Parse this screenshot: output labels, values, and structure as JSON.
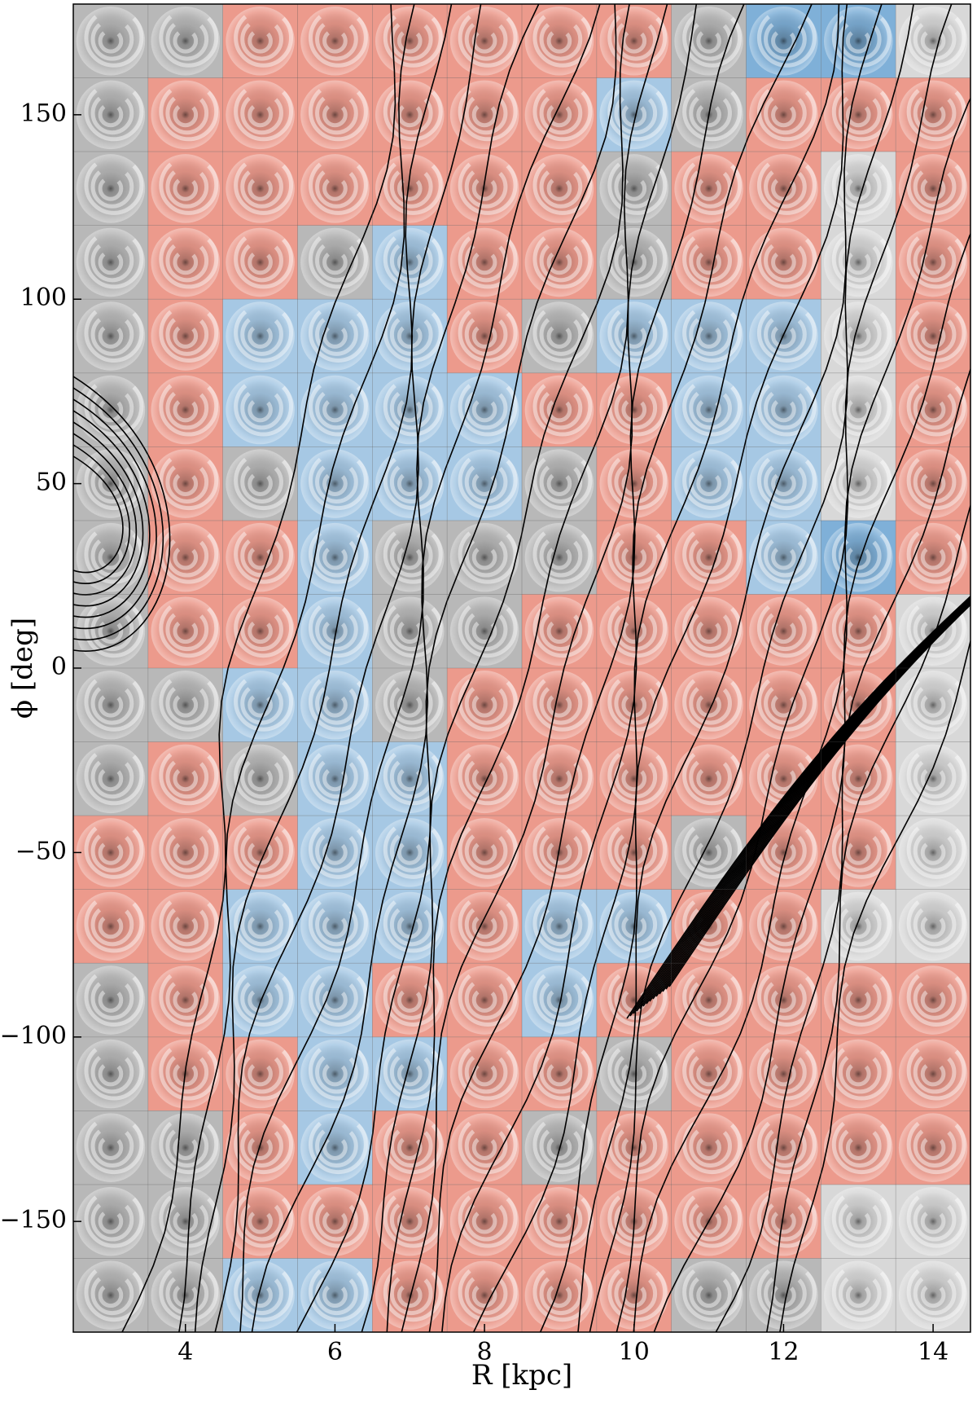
{
  "chart_data": {
    "type": "heatmap",
    "xlabel": "R [kpc]",
    "ylabel": "ϕ [deg]",
    "x": [
      3,
      4,
      5,
      6,
      7,
      8,
      9,
      10,
      11,
      12,
      13,
      14
    ],
    "y": [
      170,
      150,
      130,
      110,
      90,
      70,
      50,
      30,
      10,
      -10,
      -30,
      -50,
      -70,
      -90,
      -110,
      -130,
      -150,
      -170
    ],
    "xlim": [
      2.5,
      14.5
    ],
    "ylim": [
      -180,
      180
    ],
    "xticks": [
      4,
      6,
      8,
      10,
      12,
      14
    ],
    "yticks": [
      {
        "value": -150,
        "label": "−150"
      },
      {
        "value": -100,
        "label": "−100"
      },
      {
        "value": -50,
        "label": "−50"
      },
      0,
      50,
      100,
      150
    ],
    "grid": true,
    "cell_colors": [
      [
        "#b8b8b8",
        "#b8b8b8",
        "#ec9a8c",
        "#ec9a8c",
        "#ec9a8c",
        "#ec9a8c",
        "#ec9a8c",
        "#ec9a8c",
        "#b8b8b8",
        "#7fb0d8",
        "#7fb0d8",
        "#d8d8d8"
      ],
      [
        "#b8b8b8",
        "#ec9a8c",
        "#ec9a8c",
        "#ec9a8c",
        "#ec9a8c",
        "#ec9a8c",
        "#ec9a8c",
        "#a6c8e4",
        "#b8b8b8",
        "#ec9a8c",
        "#ec9a8c",
        "#ec9a8c"
      ],
      [
        "#b8b8b8",
        "#ec9a8c",
        "#ec9a8c",
        "#ec9a8c",
        "#ec9a8c",
        "#ec9a8c",
        "#ec9a8c",
        "#b8b8b8",
        "#ec9a8c",
        "#ec9a8c",
        "#d8d8d8",
        "#ec9a8c"
      ],
      [
        "#b8b8b8",
        "#ec9a8c",
        "#ec9a8c",
        "#b8b8b8",
        "#a6c8e4",
        "#ec9a8c",
        "#ec9a8c",
        "#b8b8b8",
        "#ec9a8c",
        "#ec9a8c",
        "#d8d8d8",
        "#ec9a8c"
      ],
      [
        "#b8b8b8",
        "#ec9a8c",
        "#a6c8e4",
        "#a6c8e4",
        "#a6c8e4",
        "#ec9a8c",
        "#b8b8b8",
        "#a6c8e4",
        "#a6c8e4",
        "#a6c8e4",
        "#d8d8d8",
        "#ec9a8c"
      ],
      [
        "#b8b8b8",
        "#ec9a8c",
        "#a6c8e4",
        "#a6c8e4",
        "#a6c8e4",
        "#a6c8e4",
        "#ec9a8c",
        "#ec9a8c",
        "#a6c8e4",
        "#a6c8e4",
        "#d8d8d8",
        "#ec9a8c"
      ],
      [
        "#b8b8b8",
        "#ec9a8c",
        "#b8b8b8",
        "#a6c8e4",
        "#a6c8e4",
        "#a6c8e4",
        "#b8b8b8",
        "#ec9a8c",
        "#a6c8e4",
        "#a6c8e4",
        "#d8d8d8",
        "#ec9a8c"
      ],
      [
        "#b8b8b8",
        "#ec9a8c",
        "#ec9a8c",
        "#a6c8e4",
        "#b8b8b8",
        "#b8b8b8",
        "#b8b8b8",
        "#ec9a8c",
        "#ec9a8c",
        "#a6c8e4",
        "#7fb0d8",
        "#ec9a8c"
      ],
      [
        "#b8b8b8",
        "#ec9a8c",
        "#ec9a8c",
        "#a6c8e4",
        "#b8b8b8",
        "#b8b8b8",
        "#ec9a8c",
        "#ec9a8c",
        "#ec9a8c",
        "#ec9a8c",
        "#ec9a8c",
        "#d8d8d8"
      ],
      [
        "#b8b8b8",
        "#b8b8b8",
        "#a6c8e4",
        "#a6c8e4",
        "#b8b8b8",
        "#ec9a8c",
        "#ec9a8c",
        "#ec9a8c",
        "#ec9a8c",
        "#ec9a8c",
        "#ec9a8c",
        "#d8d8d8"
      ],
      [
        "#b8b8b8",
        "#ec9a8c",
        "#b8b8b8",
        "#a6c8e4",
        "#a6c8e4",
        "#ec9a8c",
        "#ec9a8c",
        "#ec9a8c",
        "#ec9a8c",
        "#ec9a8c",
        "#ec9a8c",
        "#d8d8d8"
      ],
      [
        "#ec9a8c",
        "#ec9a8c",
        "#ec9a8c",
        "#a6c8e4",
        "#a6c8e4",
        "#ec9a8c",
        "#ec9a8c",
        "#ec9a8c",
        "#b8b8b8",
        "#ec9a8c",
        "#ec9a8c",
        "#d8d8d8"
      ],
      [
        "#ec9a8c",
        "#ec9a8c",
        "#a6c8e4",
        "#a6c8e4",
        "#a6c8e4",
        "#ec9a8c",
        "#a6c8e4",
        "#a6c8e4",
        "#ec9a8c",
        "#ec9a8c",
        "#d8d8d8",
        "#d8d8d8"
      ],
      [
        "#b8b8b8",
        "#ec9a8c",
        "#a6c8e4",
        "#a6c8e4",
        "#ec9a8c",
        "#ec9a8c",
        "#a6c8e4",
        "#ec9a8c",
        "#ec9a8c",
        "#ec9a8c",
        "#ec9a8c",
        "#ec9a8c"
      ],
      [
        "#b8b8b8",
        "#ec9a8c",
        "#ec9a8c",
        "#a6c8e4",
        "#a6c8e4",
        "#ec9a8c",
        "#ec9a8c",
        "#b8b8b8",
        "#ec9a8c",
        "#ec9a8c",
        "#ec9a8c",
        "#ec9a8c"
      ],
      [
        "#b8b8b8",
        "#b8b8b8",
        "#ec9a8c",
        "#a6c8e4",
        "#ec9a8c",
        "#ec9a8c",
        "#b8b8b8",
        "#ec9a8c",
        "#ec9a8c",
        "#ec9a8c",
        "#ec9a8c",
        "#ec9a8c"
      ],
      [
        "#b8b8b8",
        "#b8b8b8",
        "#ec9a8c",
        "#ec9a8c",
        "#ec9a8c",
        "#ec9a8c",
        "#ec9a8c",
        "#ec9a8c",
        "#ec9a8c",
        "#ec9a8c",
        "#d8d8d8",
        "#d8d8d8"
      ],
      [
        "#b8b8b8",
        "#b8b8b8",
        "#a6c8e4",
        "#a6c8e4",
        "#ec9a8c",
        "#ec9a8c",
        "#ec9a8c",
        "#ec9a8c",
        "#b8b8b8",
        "#b8b8b8",
        "#d8d8d8",
        "#d8d8d8"
      ]
    ]
  }
}
